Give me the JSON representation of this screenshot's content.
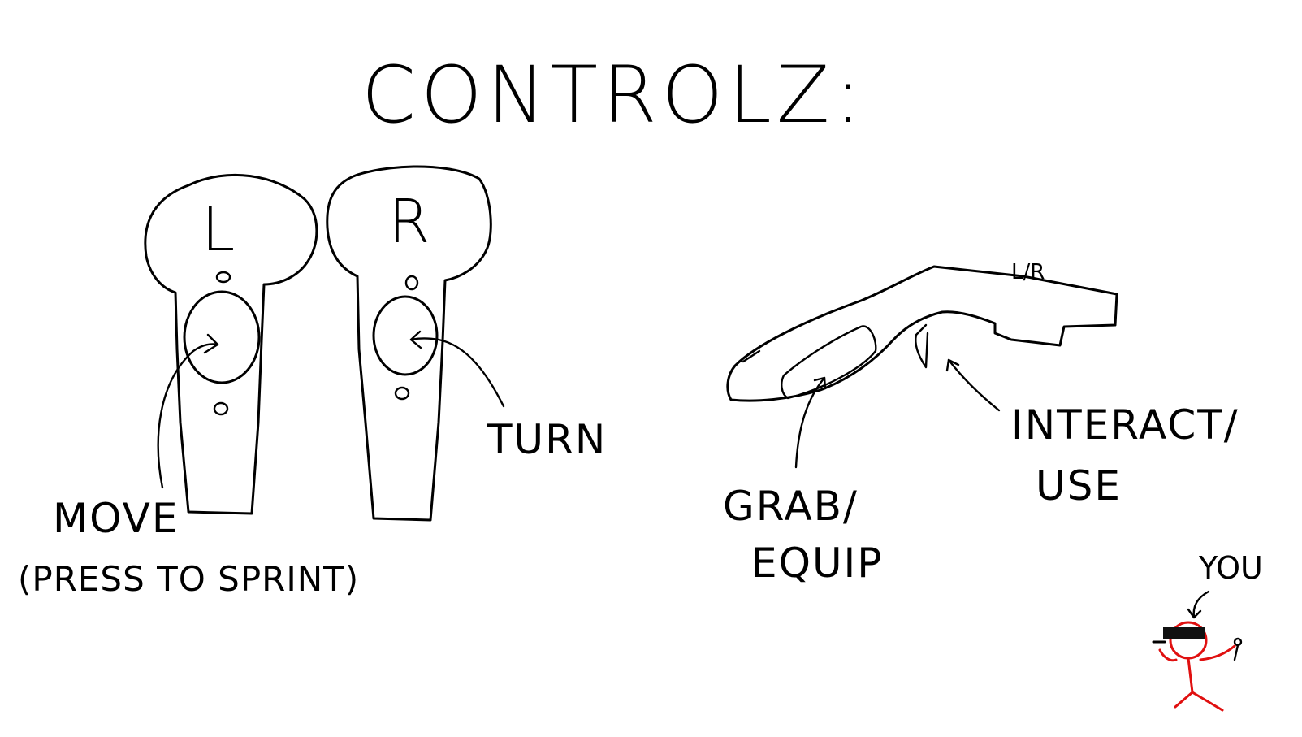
{
  "title": "CONTROLZ:",
  "left_controller": {
    "letter": "L",
    "label_line1": "MOVE",
    "label_line2": "(PRESS TO SPRINT)"
  },
  "right_controller": {
    "letter": "R",
    "label": "TURN"
  },
  "side_controller": {
    "tag": "L/R",
    "grab_line1": "GRAB/",
    "grab_line2": "EQUIP",
    "interact_line1": "INTERACT/",
    "interact_line2": "USE"
  },
  "player": {
    "label": "YOU"
  },
  "colors": {
    "ink": "#000000",
    "figure": "#e01010",
    "background": "#ffffff"
  }
}
